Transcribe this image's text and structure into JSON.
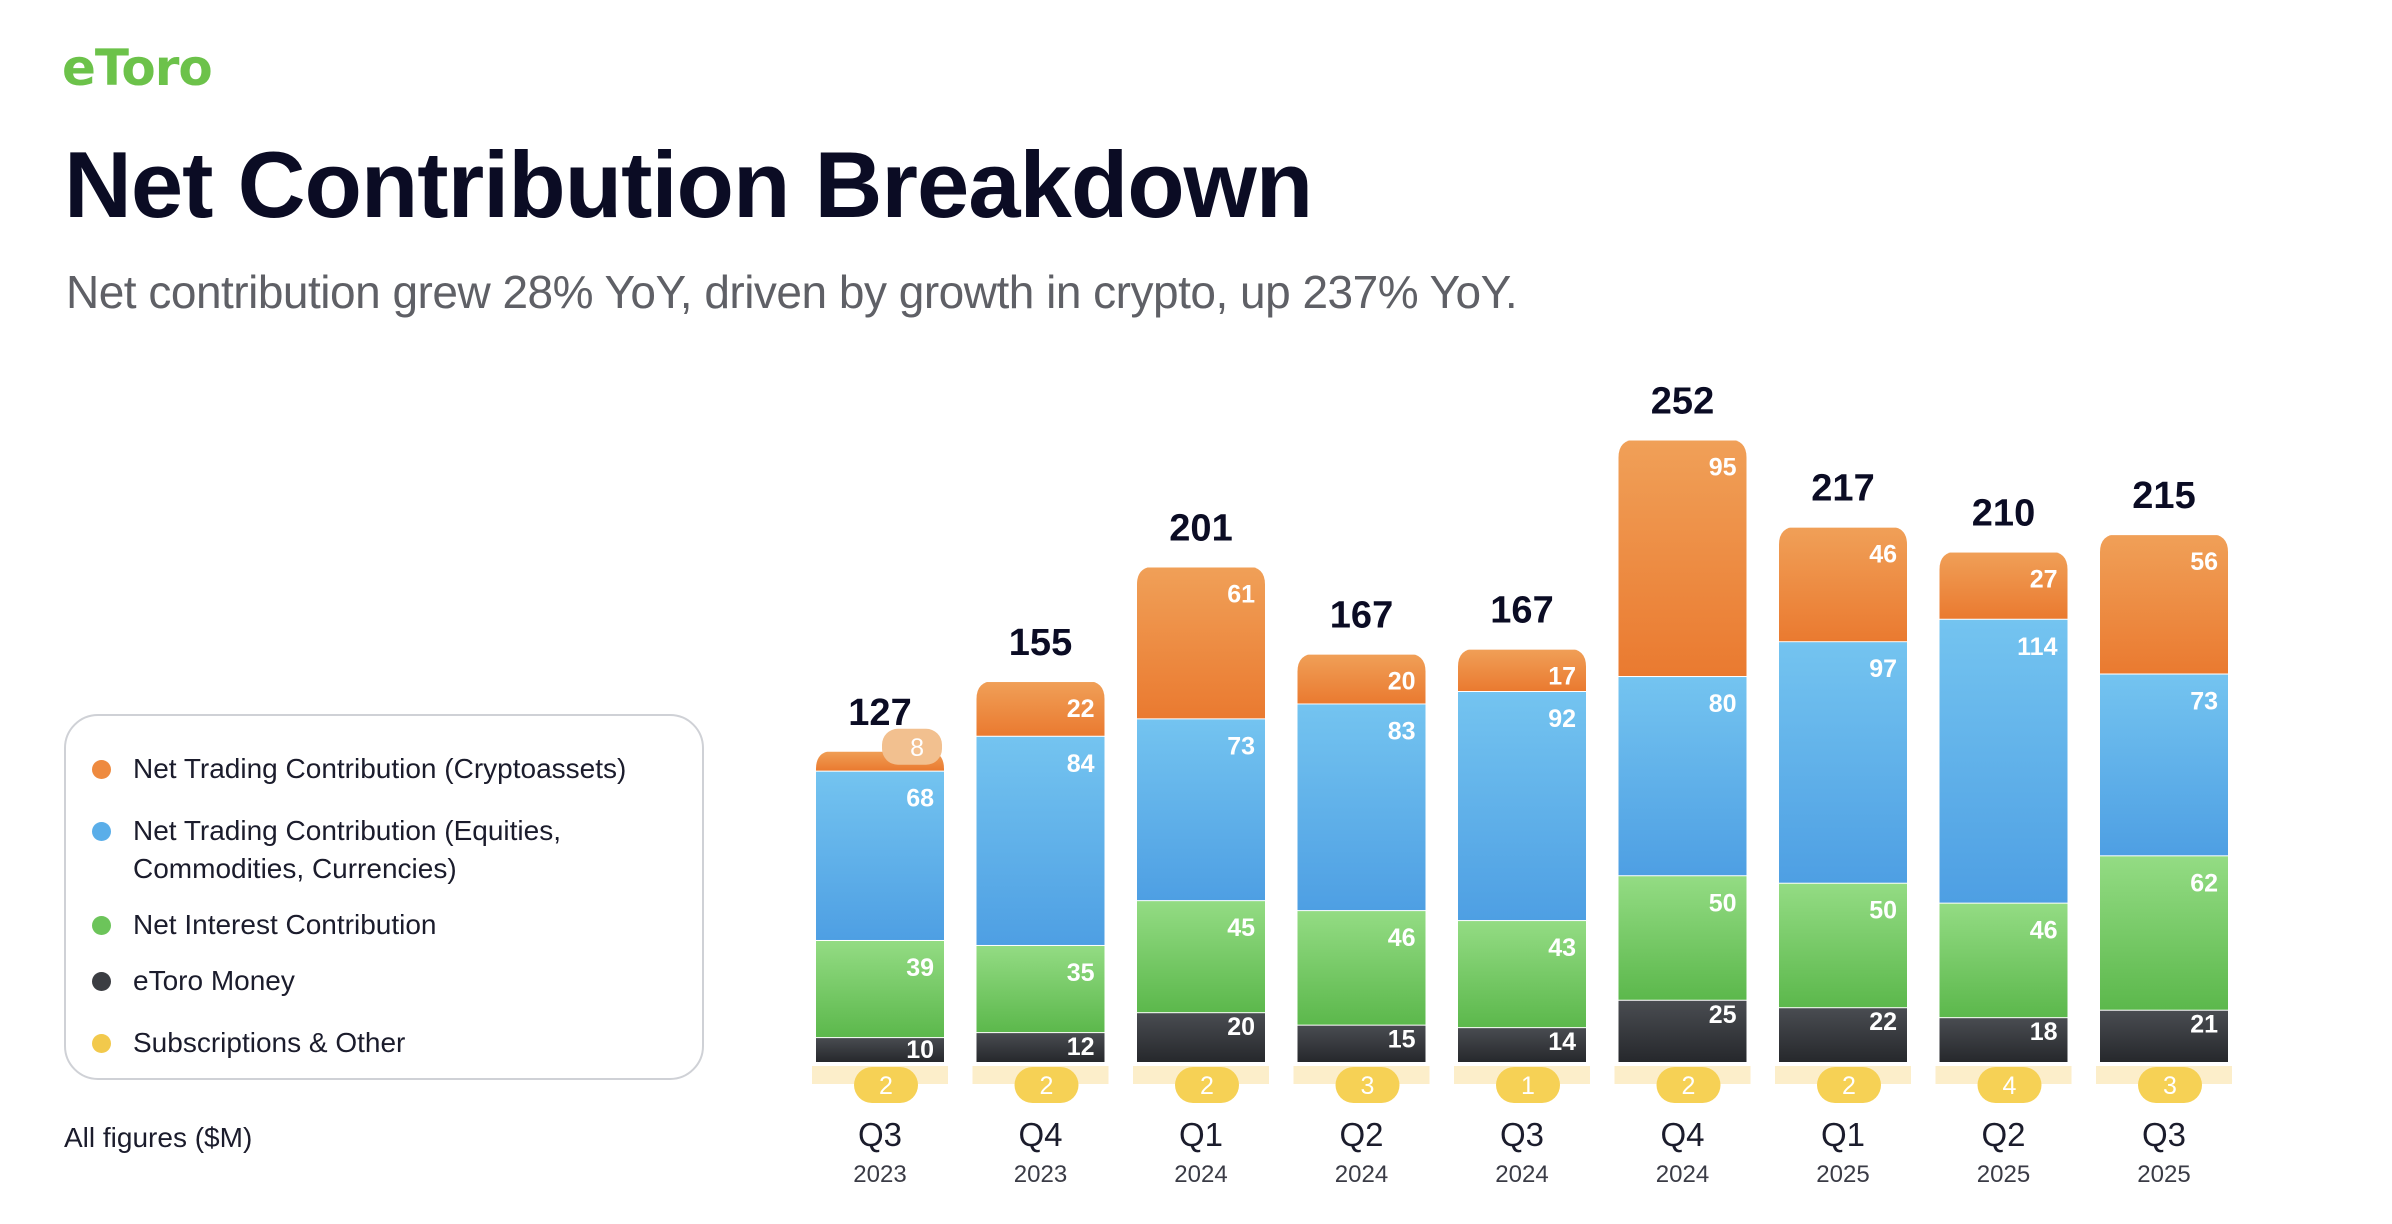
{
  "brand": {
    "logo_text": "eToro"
  },
  "header": {
    "title": "Net Contribution Breakdown",
    "subtitle": "Net contribution grew 28% YoY, driven by growth in crypto, up 237% YoY."
  },
  "legend": {
    "items": [
      {
        "label": "Net Trading Contribution (Cryptoassets)",
        "color": "#ee8a3f"
      },
      {
        "label": "Net Trading Contribution (Equities, Commodities, Currencies)",
        "color": "#5aaee9"
      },
      {
        "label": "Net Interest Contribution",
        "color": "#6cc45a"
      },
      {
        "label": "eToro Money",
        "color": "#3b3d42"
      },
      {
        "label": "Subscriptions & Other",
        "color": "#f2c94c"
      }
    ]
  },
  "footnote": "All figures ($M)",
  "chart_data": {
    "type": "bar",
    "stacked": true,
    "categories": [
      "Q3 2023",
      "Q4 2023",
      "Q1 2024",
      "Q2 2024",
      "Q3 2024",
      "Q4 2024",
      "Q1 2025",
      "Q2 2025",
      "Q3 2025"
    ],
    "quarters": [
      "Q3",
      "Q4",
      "Q1",
      "Q2",
      "Q3",
      "Q4",
      "Q1",
      "Q2",
      "Q3"
    ],
    "years": [
      "2023",
      "2023",
      "2024",
      "2024",
      "2024",
      "2024",
      "2025",
      "2025",
      "2025"
    ],
    "totals": [
      127,
      155,
      201,
      167,
      167,
      252,
      217,
      210,
      215
    ],
    "series": [
      {
        "name": "Subscriptions & Other",
        "color": "#f2c94c",
        "values": [
          2,
          2,
          2,
          3,
          1,
          2,
          2,
          4,
          3
        ]
      },
      {
        "name": "eToro Money",
        "color": "#3b3d42",
        "values": [
          10,
          12,
          20,
          15,
          14,
          25,
          22,
          18,
          21
        ]
      },
      {
        "name": "Net Interest Contribution",
        "color": "#6cc45a",
        "values": [
          39,
          35,
          45,
          46,
          43,
          50,
          50,
          46,
          62
        ]
      },
      {
        "name": "Net Trading Contribution (Equities, Commodities, Currencies)",
        "color": "#5aaee9",
        "values": [
          68,
          84,
          73,
          83,
          92,
          80,
          97,
          114,
          73
        ]
      },
      {
        "name": "Net Trading Contribution (Cryptoassets)",
        "color": "#ee8a3f",
        "values": [
          8,
          22,
          61,
          20,
          17,
          95,
          46,
          27,
          56
        ]
      }
    ]
  }
}
